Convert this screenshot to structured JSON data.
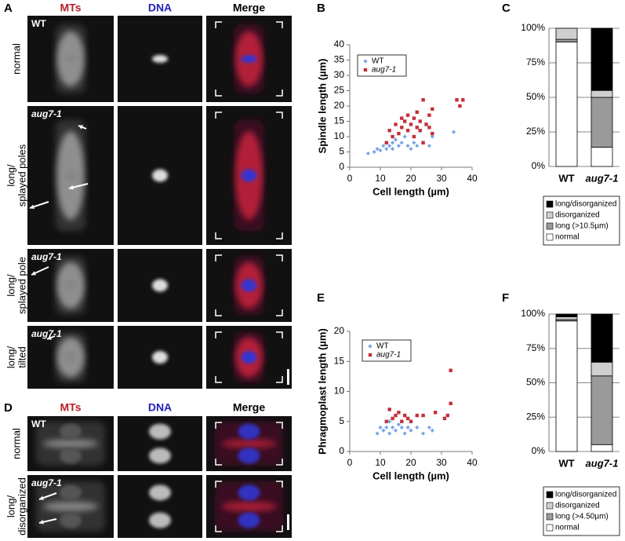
{
  "figure": {
    "panel_a": {
      "panel_label": "A",
      "columns": [
        {
          "text": "MTs",
          "color": "#b3202a"
        },
        {
          "text": "DNA",
          "color": "#2424b8"
        },
        {
          "text": "Merge",
          "color": "#000000"
        }
      ],
      "rows": [
        {
          "genotype": "WT",
          "label": [
            "normal"
          ]
        },
        {
          "genotype": "aug7-1",
          "label": [
            "long/",
            "splayed poles"
          ]
        },
        {
          "genotype": "aug7-1",
          "label": [
            "long/",
            "splayed pole"
          ]
        },
        {
          "genotype": "aug7-1",
          "label": [
            "long/",
            "tilted"
          ]
        }
      ]
    },
    "panel_d": {
      "panel_label": "D",
      "columns": [
        {
          "text": "MTs",
          "color": "#b3202a"
        },
        {
          "text": "DNA",
          "color": "#2424b8"
        },
        {
          "text": "Merge",
          "color": "#000000"
        }
      ],
      "rows": [
        {
          "genotype": "WT",
          "label": [
            "normal"
          ]
        },
        {
          "genotype": "aug7-1",
          "label": [
            "long/",
            "disorganized"
          ]
        }
      ]
    }
  },
  "chart_data": [
    {
      "type": "scatter",
      "panel_label": "B",
      "x_label": "Cell length (µm)",
      "y_label": "Spindle length (µm)",
      "xlim": [
        0,
        40
      ],
      "xticks": [
        0,
        10,
        20,
        30,
        40
      ],
      "ylim": [
        0,
        40
      ],
      "yticks": [
        0,
        5,
        10,
        15,
        20,
        25,
        30,
        35,
        40
      ],
      "series": [
        {
          "name": "WT",
          "color": "#78a6e6",
          "marker": "diamond",
          "x": [
            6,
            8,
            9,
            10,
            11,
            12,
            12,
            13,
            14,
            14,
            15,
            16,
            17,
            18,
            19,
            20,
            21,
            22,
            24,
            26,
            27,
            34
          ],
          "values": [
            4.5,
            5,
            6,
            5.5,
            7,
            6,
            8,
            7,
            8,
            6,
            9,
            7,
            8,
            10,
            7,
            6,
            8,
            7,
            8,
            7,
            10,
            11.5
          ]
        },
        {
          "name": "aug7-1",
          "color": "#c4303a",
          "marker": "square",
          "x": [
            12,
            13,
            14,
            15,
            16,
            17,
            17,
            18,
            19,
            19,
            20,
            21,
            21,
            22,
            22,
            23,
            23,
            24,
            24,
            25,
            26,
            26,
            27,
            27,
            35,
            36,
            37
          ],
          "values": [
            8,
            12,
            10,
            14,
            11,
            13,
            16,
            15,
            12,
            17,
            14,
            10,
            16,
            13,
            18,
            15,
            12,
            8,
            22,
            14,
            17,
            13,
            19,
            11,
            22,
            20,
            22
          ]
        }
      ]
    },
    {
      "type": "stacked_bar",
      "panel_label": "C",
      "categories": [
        "WT",
        "aug7-1"
      ],
      "ylim": [
        0,
        100
      ],
      "grid": true,
      "yticks": [
        {
          "value": 0,
          "label": "0%"
        },
        {
          "value": 25,
          "label": "25%"
        },
        {
          "value": 50,
          "label": "50%"
        },
        {
          "value": 75,
          "label": "75%"
        },
        {
          "value": 100,
          "label": "100%"
        }
      ],
      "series": [
        {
          "name": "normal",
          "color": "#ffffff",
          "values": [
            90,
            14
          ]
        },
        {
          "name": "long (>10.5µm)",
          "color": "#9a9a9a",
          "values": [
            2,
            36
          ]
        },
        {
          "name": "disorganized",
          "color": "#cfcfcf",
          "values": [
            8,
            5
          ]
        },
        {
          "name": "long/disorganized",
          "color": "#000000",
          "values": [
            0,
            45
          ]
        }
      ]
    },
    {
      "type": "scatter",
      "panel_label": "E",
      "x_label": "Cell length (µm)",
      "y_label": "Phragmoplast length (µm)",
      "xlim": [
        0,
        40
      ],
      "xticks": [
        0,
        10,
        20,
        30,
        40
      ],
      "ylim": [
        0,
        20
      ],
      "yticks": [
        0,
        5,
        10,
        15,
        20
      ],
      "series": [
        {
          "name": "WT",
          "color": "#78a6e6",
          "marker": "diamond",
          "x": [
            9,
            10,
            11,
            12,
            13,
            13,
            14,
            15,
            16,
            17,
            18,
            19,
            20,
            22,
            24,
            26,
            27
          ],
          "values": [
            3,
            4,
            3.5,
            4,
            3,
            5,
            4,
            3.5,
            4.5,
            4,
            3,
            4,
            3.5,
            4,
            3,
            4,
            3.5
          ]
        },
        {
          "name": "aug7-1",
          "color": "#c4303a",
          "marker": "square",
          "x": [
            12,
            13,
            14,
            15,
            16,
            17,
            18,
            19,
            20,
            22,
            24,
            28,
            31,
            32,
            33,
            33
          ],
          "values": [
            5,
            7,
            5.5,
            6,
            6.5,
            5,
            6,
            5.5,
            5,
            6,
            6,
            6.5,
            5.5,
            6,
            13.5,
            8
          ]
        }
      ]
    },
    {
      "type": "stacked_bar",
      "panel_label": "F",
      "categories": [
        "WT",
        "aug7-1"
      ],
      "ylim": [
        0,
        100
      ],
      "grid": true,
      "yticks": [
        {
          "value": 0,
          "label": "0%"
        },
        {
          "value": 25,
          "label": "25%"
        },
        {
          "value": 50,
          "label": "50%"
        },
        {
          "value": 75,
          "label": "75%"
        },
        {
          "value": 100,
          "label": "100%"
        }
      ],
      "series": [
        {
          "name": "normal",
          "color": "#ffffff",
          "values": [
            95,
            5
          ]
        },
        {
          "name": "long (>4.50µm)",
          "color": "#9a9a9a",
          "values": [
            1,
            50
          ]
        },
        {
          "name": "disorganized",
          "color": "#cfcfcf",
          "values": [
            2,
            10
          ]
        },
        {
          "name": "long/disorganized",
          "color": "#000000",
          "values": [
            2,
            35
          ]
        }
      ]
    }
  ]
}
